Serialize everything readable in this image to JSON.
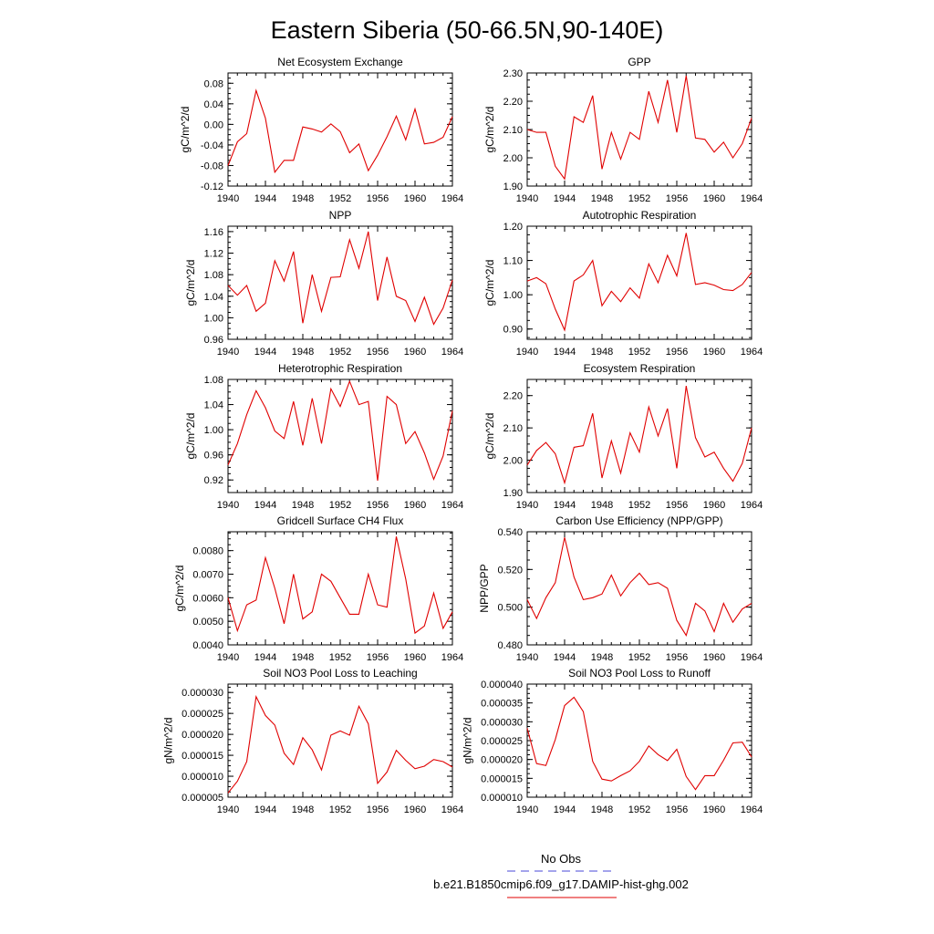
{
  "figure": {
    "title": "Eastern Siberia (50-66.5N,90-140E)",
    "line_color": "#e00000",
    "legend": [
      {
        "label": "No Obs",
        "color": "#4a4ad8",
        "style": "dashed"
      },
      {
        "label": "b.e21.B1850cmip6.f09_g17.DAMIP-hist-ghg.002",
        "color": "#e00000",
        "style": "solid"
      }
    ]
  },
  "chart_data": [
    {
      "type": "line",
      "title": "Net Ecosystem Exchange",
      "ylabel": "gC/m^2/d",
      "xlim": [
        1940,
        1964
      ],
      "ylim": [
        -0.12,
        0.1
      ],
      "xticks": [
        1940,
        1944,
        1948,
        1952,
        1956,
        1960,
        1964
      ],
      "xtick_labels": [
        "1940",
        "1944",
        "1948",
        "1952",
        "1956",
        "1960",
        "1964"
      ],
      "yticks": [
        -0.12,
        -0.08,
        -0.04,
        0.0,
        0.04,
        0.08
      ],
      "ytick_labels": [
        "-0.12",
        "-0.08",
        "-0.04",
        "0.00",
        "0.04",
        "0.08"
      ],
      "x": [
        1940,
        1941,
        1942,
        1943,
        1944,
        1945,
        1946,
        1947,
        1948,
        1949,
        1950,
        1951,
        1952,
        1953,
        1954,
        1955,
        1956,
        1957,
        1958,
        1959,
        1960,
        1961,
        1962,
        1963,
        1964
      ],
      "y": [
        -0.08,
        -0.034,
        -0.018,
        0.066,
        0.012,
        -0.093,
        -0.07,
        -0.07,
        -0.005,
        -0.009,
        -0.015,
        0.001,
        -0.014,
        -0.055,
        -0.038,
        -0.09,
        -0.06,
        -0.024,
        0.016,
        -0.03,
        0.03,
        -0.038,
        -0.035,
        -0.025,
        0.015
      ]
    },
    {
      "type": "line",
      "title": "GPP",
      "ylabel": "gC/m^2/d",
      "xlim": [
        1940,
        1964
      ],
      "ylim": [
        1.9,
        2.3
      ],
      "xticks": [
        1940,
        1944,
        1948,
        1952,
        1956,
        1960,
        1964
      ],
      "xtick_labels": [
        "1940",
        "1944",
        "1948",
        "1952",
        "1956",
        "1960",
        "1964"
      ],
      "yticks": [
        1.9,
        2.0,
        2.1,
        2.2,
        2.3
      ],
      "ytick_labels": [
        "1.90",
        "2.00",
        "2.10",
        "2.20",
        "2.30"
      ],
      "x": [
        1940,
        1941,
        1942,
        1943,
        1944,
        1945,
        1946,
        1947,
        1948,
        1949,
        1950,
        1951,
        1952,
        1953,
        1954,
        1955,
        1956,
        1957,
        1958,
        1959,
        1960,
        1961,
        1962,
        1963,
        1964
      ],
      "y": [
        2.1,
        2.09,
        2.09,
        1.97,
        1.925,
        2.145,
        2.125,
        2.22,
        1.96,
        2.09,
        1.995,
        2.09,
        2.065,
        2.235,
        2.125,
        2.275,
        2.09,
        2.29,
        2.07,
        2.065,
        2.02,
        2.055,
        2.0,
        2.05,
        2.14
      ]
    },
    {
      "type": "line",
      "title": "NPP",
      "ylabel": "gC/m^2/d",
      "xlim": [
        1940,
        1964
      ],
      "ylim": [
        0.96,
        1.17
      ],
      "xticks": [
        1940,
        1944,
        1948,
        1952,
        1956,
        1960,
        1964
      ],
      "xtick_labels": [
        "1940",
        "1944",
        "1948",
        "1952",
        "1956",
        "1960",
        "1964"
      ],
      "yticks": [
        0.96,
        1.0,
        1.04,
        1.08,
        1.12,
        1.16
      ],
      "ytick_labels": [
        "0.96",
        "1.00",
        "1.04",
        "1.08",
        "1.12",
        "1.16"
      ],
      "x": [
        1940,
        1941,
        1942,
        1943,
        1944,
        1945,
        1946,
        1947,
        1948,
        1949,
        1950,
        1951,
        1952,
        1953,
        1954,
        1955,
        1956,
        1957,
        1958,
        1959,
        1960,
        1961,
        1962,
        1963,
        1964
      ],
      "y": [
        1.06,
        1.042,
        1.06,
        1.012,
        1.027,
        1.106,
        1.068,
        1.123,
        0.99,
        1.08,
        1.012,
        1.075,
        1.076,
        1.145,
        1.092,
        1.16,
        1.032,
        1.113,
        1.04,
        1.032,
        0.993,
        1.038,
        0.988,
        1.018,
        1.07
      ]
    },
    {
      "type": "line",
      "title": "Autotrophic Respiration",
      "ylabel": "gC/m^2/d",
      "xlim": [
        1940,
        1964
      ],
      "ylim": [
        0.87,
        1.2
      ],
      "xticks": [
        1940,
        1944,
        1948,
        1952,
        1956,
        1960,
        1964
      ],
      "xtick_labels": [
        "1940",
        "1944",
        "1948",
        "1952",
        "1956",
        "1960",
        "1964"
      ],
      "yticks": [
        0.9,
        1.0,
        1.1,
        1.2
      ],
      "ytick_labels": [
        "0.90",
        "1.00",
        "1.10",
        "1.20"
      ],
      "x": [
        1940,
        1941,
        1942,
        1943,
        1944,
        1945,
        1946,
        1947,
        1948,
        1949,
        1950,
        1951,
        1952,
        1953,
        1954,
        1955,
        1956,
        1957,
        1958,
        1959,
        1960,
        1961,
        1962,
        1963,
        1964
      ],
      "y": [
        1.04,
        1.05,
        1.032,
        0.958,
        0.897,
        1.04,
        1.058,
        1.1,
        0.968,
        1.01,
        0.98,
        1.02,
        0.99,
        1.09,
        1.035,
        1.115,
        1.055,
        1.18,
        1.03,
        1.035,
        1.028,
        1.015,
        1.012,
        1.03,
        1.065
      ]
    },
    {
      "type": "line",
      "title": "Heterotrophic Respiration",
      "ylabel": "gC/m^2/d",
      "xlim": [
        1940,
        1964
      ],
      "ylim": [
        0.9,
        1.08
      ],
      "xticks": [
        1940,
        1944,
        1948,
        1952,
        1956,
        1960,
        1964
      ],
      "xtick_labels": [
        "1940",
        "1944",
        "1948",
        "1952",
        "1956",
        "1960",
        "1964"
      ],
      "yticks": [
        0.92,
        0.96,
        1.0,
        1.04,
        1.08
      ],
      "ytick_labels": [
        "0.92",
        "0.96",
        "1.00",
        "1.04",
        "1.08"
      ],
      "x": [
        1940,
        1941,
        1942,
        1943,
        1944,
        1945,
        1946,
        1947,
        1948,
        1949,
        1950,
        1951,
        1952,
        1953,
        1954,
        1955,
        1956,
        1957,
        1958,
        1959,
        1960,
        1961,
        1962,
        1963,
        1964
      ],
      "y": [
        0.944,
        0.978,
        1.024,
        1.062,
        1.035,
        0.998,
        0.986,
        1.045,
        0.975,
        1.05,
        0.978,
        1.065,
        1.037,
        1.077,
        1.04,
        1.045,
        0.919,
        1.053,
        1.04,
        0.978,
        0.997,
        0.963,
        0.921,
        0.958,
        1.03
      ]
    },
    {
      "type": "line",
      "title": "Ecosystem Respiration",
      "ylabel": "gC/m^2/d",
      "xlim": [
        1940,
        1964
      ],
      "ylim": [
        1.9,
        2.25
      ],
      "xticks": [
        1940,
        1944,
        1948,
        1952,
        1956,
        1960,
        1964
      ],
      "xtick_labels": [
        "1940",
        "1944",
        "1948",
        "1952",
        "1956",
        "1960",
        "1964"
      ],
      "yticks": [
        1.9,
        2.0,
        2.1,
        2.2
      ],
      "ytick_labels": [
        "1.90",
        "2.00",
        "2.10",
        "2.20"
      ],
      "x": [
        1940,
        1941,
        1942,
        1943,
        1944,
        1945,
        1946,
        1947,
        1948,
        1949,
        1950,
        1951,
        1952,
        1953,
        1954,
        1955,
        1956,
        1957,
        1958,
        1959,
        1960,
        1961,
        1962,
        1963,
        1964
      ],
      "y": [
        1.985,
        2.03,
        2.055,
        2.02,
        1.93,
        2.04,
        2.045,
        2.145,
        1.945,
        2.06,
        1.96,
        2.085,
        2.025,
        2.165,
        2.075,
        2.16,
        1.975,
        2.23,
        2.07,
        2.01,
        2.025,
        1.975,
        1.935,
        1.99,
        2.1
      ]
    },
    {
      "type": "line",
      "title": "Gridcell Surface CH4 Flux",
      "ylabel": "gC/m^2/d",
      "xlim": [
        1940,
        1964
      ],
      "ylim": [
        0.004,
        0.0088
      ],
      "xticks": [
        1940,
        1944,
        1948,
        1952,
        1956,
        1960,
        1964
      ],
      "xtick_labels": [
        "1940",
        "1944",
        "1948",
        "1952",
        "1956",
        "1960",
        "1964"
      ],
      "yticks": [
        0.004,
        0.005,
        0.006,
        0.007,
        0.008
      ],
      "ytick_labels": [
        "0.0040",
        "0.0050",
        "0.0060",
        "0.0070",
        "0.0080"
      ],
      "x": [
        1940,
        1941,
        1942,
        1943,
        1944,
        1945,
        1946,
        1947,
        1948,
        1949,
        1950,
        1951,
        1952,
        1953,
        1954,
        1955,
        1956,
        1957,
        1958,
        1959,
        1960,
        1961,
        1962,
        1963,
        1964
      ],
      "y": [
        0.006,
        0.0046,
        0.0057,
        0.0059,
        0.0077,
        0.0064,
        0.0049,
        0.007,
        0.0051,
        0.0054,
        0.007,
        0.0067,
        0.006,
        0.0053,
        0.0053,
        0.007,
        0.0057,
        0.0056,
        0.0086,
        0.0068,
        0.0045,
        0.0048,
        0.0062,
        0.0047,
        0.0054
      ]
    },
    {
      "type": "line",
      "title": "Carbon Use Efficiency (NPP/GPP)",
      "ylabel": "NPP/GPP",
      "xlim": [
        1940,
        1964
      ],
      "ylim": [
        0.48,
        0.54
      ],
      "xticks": [
        1940,
        1944,
        1948,
        1952,
        1956,
        1960,
        1964
      ],
      "xtick_labels": [
        "1940",
        "1944",
        "1948",
        "1952",
        "1956",
        "1960",
        "1964"
      ],
      "yticks": [
        0.48,
        0.5,
        0.52,
        0.54
      ],
      "ytick_labels": [
        "0.480",
        "0.500",
        "0.520",
        "0.540"
      ],
      "x": [
        1940,
        1941,
        1942,
        1943,
        1944,
        1945,
        1946,
        1947,
        1948,
        1949,
        1950,
        1951,
        1952,
        1953,
        1954,
        1955,
        1956,
        1957,
        1958,
        1959,
        1960,
        1961,
        1962,
        1963,
        1964
      ],
      "y": [
        0.504,
        0.494,
        0.505,
        0.513,
        0.537,
        0.516,
        0.504,
        0.505,
        0.507,
        0.517,
        0.506,
        0.513,
        0.518,
        0.512,
        0.513,
        0.51,
        0.493,
        0.485,
        0.502,
        0.498,
        0.487,
        0.502,
        0.492,
        0.499,
        0.502
      ]
    },
    {
      "type": "line",
      "title": "Soil NO3 Pool Loss to Leaching",
      "ylabel": "gN/m^2/d",
      "xlim": [
        1940,
        1964
      ],
      "ylim": [
        5e-06,
        3.2e-05
      ],
      "xticks": [
        1940,
        1944,
        1948,
        1952,
        1956,
        1960,
        1964
      ],
      "xtick_labels": [
        "1940",
        "1944",
        "1948",
        "1952",
        "1956",
        "1960",
        "1964"
      ],
      "yticks": [
        5e-06,
        1e-05,
        1.5e-05,
        2e-05,
        2.5e-05,
        3e-05
      ],
      "ytick_labels": [
        "0.000005",
        "0.000010",
        "0.000015",
        "0.000020",
        "0.000025",
        "0.000030"
      ],
      "x": [
        1940,
        1941,
        1942,
        1943,
        1944,
        1945,
        1946,
        1947,
        1948,
        1949,
        1950,
        1951,
        1952,
        1953,
        1954,
        1955,
        1956,
        1957,
        1958,
        1959,
        1960,
        1961,
        1962,
        1963,
        1964
      ],
      "y": [
        6e-06,
        8.8e-06,
        1.35e-05,
        2.9e-05,
        2.45e-05,
        2.22e-05,
        1.55e-05,
        1.28e-05,
        1.92e-05,
        1.63e-05,
        1.15e-05,
        1.98e-05,
        2.08e-05,
        1.98e-05,
        2.67e-05,
        2.25e-05,
        8.3e-06,
        1.1e-05,
        1.62e-05,
        1.38e-05,
        1.18e-05,
        1.24e-05,
        1.4e-05,
        1.35e-05,
        1.22e-05
      ]
    },
    {
      "type": "line",
      "title": "Soil NO3 Pool Loss to Runoff",
      "ylabel": "gN/m^2/d",
      "xlim": [
        1940,
        1964
      ],
      "ylim": [
        1e-05,
        4e-05
      ],
      "xticks": [
        1940,
        1944,
        1948,
        1952,
        1956,
        1960,
        1964
      ],
      "xtick_labels": [
        "1940",
        "1944",
        "1948",
        "1952",
        "1956",
        "1960",
        "1964"
      ],
      "yticks": [
        1e-05,
        1.5e-05,
        2e-05,
        2.5e-05,
        3e-05,
        3.5e-05,
        4e-05
      ],
      "ytick_labels": [
        "0.000010",
        "0.000015",
        "0.000020",
        "0.000025",
        "0.000030",
        "0.000035",
        "0.000040"
      ],
      "x": [
        1940,
        1941,
        1942,
        1943,
        1944,
        1945,
        1946,
        1947,
        1948,
        1949,
        1950,
        1951,
        1952,
        1953,
        1954,
        1955,
        1956,
        1957,
        1958,
        1959,
        1960,
        1961,
        1962,
        1963,
        1964
      ],
      "y": [
        2.83e-05,
        1.89e-05,
        1.84e-05,
        2.53e-05,
        3.43e-05,
        3.65e-05,
        3.27e-05,
        1.95e-05,
        1.48e-05,
        1.43e-05,
        1.57e-05,
        1.7e-05,
        1.95e-05,
        2.36e-05,
        2.13e-05,
        1.97e-05,
        2.27e-05,
        1.55e-05,
        1.2e-05,
        1.57e-05,
        1.57e-05,
        1.98e-05,
        2.44e-05,
        2.46e-05,
        2.07e-05
      ]
    }
  ]
}
